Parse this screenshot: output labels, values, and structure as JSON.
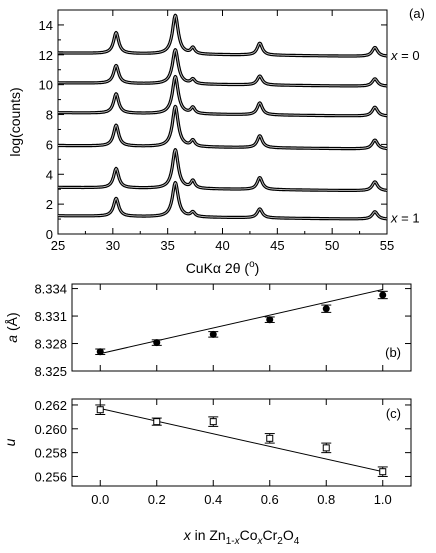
{
  "chart_data": [
    {
      "type": "line",
      "panel_label": "(a)",
      "xlabel_parts": [
        "CuK",
        "α",
        " 2",
        "θ",
        " (",
        "o",
        ")"
      ],
      "ylabel": "log(counts)",
      "xlim": [
        25,
        55
      ],
      "ylim": [
        0,
        15
      ],
      "x_ticks": [
        25,
        30,
        35,
        40,
        45,
        50,
        55
      ],
      "x_tick_labels": [
        "25",
        "30",
        "35",
        "40",
        "45",
        "50",
        "55"
      ],
      "y_ticks": [
        0,
        2,
        4,
        6,
        8,
        10,
        12,
        14
      ],
      "y_tick_labels": [
        "0",
        "2",
        "4",
        "6",
        "8",
        "10",
        "12",
        "14"
      ],
      "peaks_2theta": [
        30.3,
        35.7,
        37.3,
        43.4,
        53.9
      ],
      "series": [
        {
          "baseline": 12.0,
          "peak_heights": [
            1.4,
            2.6,
            0.4,
            0.8,
            0.6
          ],
          "annotation": [
            "x",
            " = 0"
          ]
        },
        {
          "baseline": 10.0,
          "peak_heights": [
            1.2,
            2.3,
            0.3,
            0.6,
            0.5
          ],
          "annotation": null
        },
        {
          "baseline": 8.0,
          "peak_heights": [
            1.3,
            2.5,
            0.4,
            0.8,
            0.6
          ],
          "annotation": null
        },
        {
          "baseline": 5.8,
          "peak_heights": [
            1.4,
            2.7,
            0.4,
            0.8,
            0.6
          ],
          "annotation": null
        },
        {
          "baseline": 3.0,
          "peak_heights": [
            1.3,
            2.6,
            0.5,
            0.8,
            0.6
          ],
          "annotation": null
        },
        {
          "baseline": 1.1,
          "peak_heights": [
            1.2,
            2.3,
            0.3,
            0.6,
            0.5
          ],
          "annotation": [
            "x",
            " = 1"
          ]
        }
      ]
    },
    {
      "type": "scatter",
      "panel_label": "(b)",
      "ylabel_parts": [
        "a",
        " (",
        "Å",
        ")"
      ],
      "xlim": [
        -0.1,
        1.1
      ],
      "ylim": [
        8.325,
        8.3345
      ],
      "y_ticks": [
        8.325,
        8.328,
        8.331,
        8.334
      ],
      "y_tick_labels": [
        "8.325",
        "8.328",
        "8.331",
        "8.334"
      ],
      "points": [
        {
          "x": 0.0,
          "y": 8.3271,
          "err": 0.0003
        },
        {
          "x": 0.2,
          "y": 8.3281,
          "err": 0.0003
        },
        {
          "x": 0.4,
          "y": 8.329,
          "err": 0.0003
        },
        {
          "x": 0.6,
          "y": 8.3306,
          "err": 0.0003
        },
        {
          "x": 0.8,
          "y": 8.3318,
          "err": 0.0004
        },
        {
          "x": 1.0,
          "y": 8.3333,
          "err": 0.0004
        }
      ],
      "fit_line": [
        [
          0.0,
          8.3269
        ],
        [
          1.0,
          8.3339
        ]
      ],
      "marker": "filled-circle"
    },
    {
      "type": "scatter",
      "panel_label": "(c)",
      "ylabel": "u",
      "xlabel_parts": [
        "x",
        " in Zn",
        "1-",
        "x",
        "Co",
        "x",
        "Cr",
        "2",
        "O",
        "4"
      ],
      "xlim": [
        -0.1,
        1.1
      ],
      "ylim": [
        0.2552,
        0.2625
      ],
      "x_ticks": [
        0.0,
        0.2,
        0.4,
        0.6,
        0.8,
        1.0
      ],
      "x_tick_labels": [
        "0.0",
        "0.2",
        "0.4",
        "0.6",
        "0.8",
        "1.0"
      ],
      "y_ticks": [
        0.256,
        0.258,
        0.26,
        0.262
      ],
      "y_tick_labels": [
        "0.256",
        "0.258",
        "0.260",
        "0.262"
      ],
      "points": [
        {
          "x": 0.0,
          "y": 0.2616,
          "err": 0.0004
        },
        {
          "x": 0.2,
          "y": 0.2606,
          "err": 0.0003
        },
        {
          "x": 0.4,
          "y": 0.2606,
          "err": 0.0004
        },
        {
          "x": 0.6,
          "y": 0.2592,
          "err": 0.0004
        },
        {
          "x": 0.8,
          "y": 0.2584,
          "err": 0.0004
        },
        {
          "x": 1.0,
          "y": 0.2564,
          "err": 0.0004
        }
      ],
      "fit_line": [
        [
          0.0,
          0.2617
        ],
        [
          1.0,
          0.2564
        ]
      ],
      "marker": "open-square"
    }
  ]
}
